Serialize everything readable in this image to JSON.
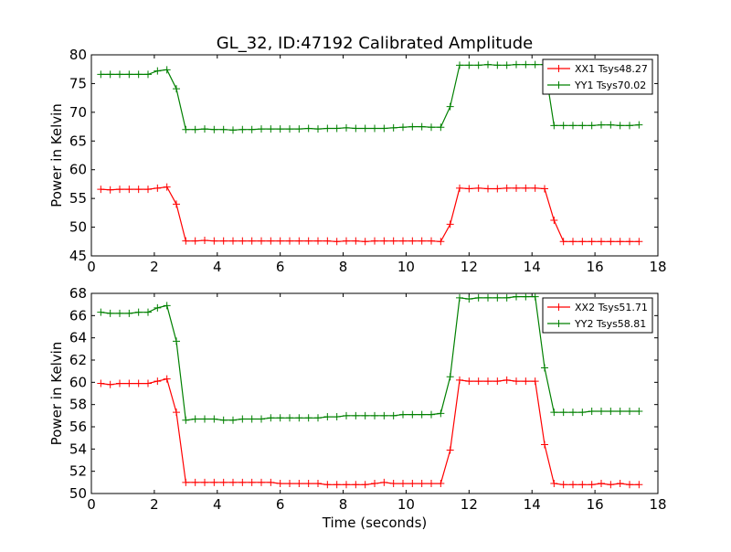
{
  "title": "GL_32, ID:47192 Calibrated Amplitude",
  "colors": {
    "xx": "#ff0000",
    "yy": "#008000"
  },
  "chart_data": [
    {
      "type": "line",
      "ylabel": "Power in Kelvin",
      "xlabel": "",
      "xlim": [
        0,
        18
      ],
      "ylim": [
        45,
        80
      ],
      "xticks": [
        0,
        2,
        4,
        6,
        8,
        10,
        12,
        14,
        16,
        18
      ],
      "yticks": [
        45,
        50,
        55,
        60,
        65,
        70,
        75,
        80
      ],
      "grid": false,
      "legend_position": "top-right",
      "x": [
        0.3,
        0.6,
        0.9,
        1.2,
        1.5,
        1.8,
        2.1,
        2.4,
        2.7,
        3.0,
        3.3,
        3.6,
        3.9,
        4.2,
        4.5,
        4.8,
        5.1,
        5.4,
        5.7,
        6.0,
        6.3,
        6.6,
        6.9,
        7.2,
        7.5,
        7.8,
        8.1,
        8.4,
        8.7,
        9.0,
        9.3,
        9.6,
        9.9,
        10.2,
        10.5,
        10.8,
        11.1,
        11.4,
        11.7,
        12.0,
        12.3,
        12.6,
        12.9,
        13.2,
        13.5,
        13.8,
        14.1,
        14.4,
        14.7,
        15.0,
        15.3,
        15.6,
        15.9,
        16.2,
        16.5,
        16.8,
        17.1,
        17.4
      ],
      "series": [
        {
          "name": "XX1 Tsys48.27",
          "color_key": "xx",
          "values": [
            56.6,
            56.5,
            56.6,
            56.6,
            56.6,
            56.6,
            56.8,
            57.0,
            54.0,
            47.6,
            47.6,
            47.7,
            47.6,
            47.6,
            47.6,
            47.6,
            47.6,
            47.6,
            47.6,
            47.6,
            47.6,
            47.6,
            47.6,
            47.6,
            47.6,
            47.5,
            47.6,
            47.6,
            47.5,
            47.6,
            47.6,
            47.6,
            47.6,
            47.6,
            47.6,
            47.6,
            47.5,
            50.5,
            56.8,
            56.7,
            56.8,
            56.7,
            56.7,
            56.8,
            56.8,
            56.8,
            56.8,
            56.7,
            51.2,
            47.5,
            47.5,
            47.5,
            47.5,
            47.5,
            47.5,
            47.5,
            47.5,
            47.5
          ]
        },
        {
          "name": "YY1 Tsys70.02",
          "color_key": "yy",
          "values": [
            76.6,
            76.6,
            76.6,
            76.6,
            76.6,
            76.6,
            77.2,
            77.4,
            74.1,
            67.0,
            67.0,
            67.1,
            67.0,
            67.0,
            66.9,
            67.0,
            67.0,
            67.1,
            67.1,
            67.1,
            67.1,
            67.1,
            67.2,
            67.1,
            67.2,
            67.2,
            67.3,
            67.2,
            67.2,
            67.2,
            67.2,
            67.3,
            67.4,
            67.5,
            67.5,
            67.4,
            67.4,
            71.0,
            78.2,
            78.2,
            78.2,
            78.3,
            78.2,
            78.2,
            78.3,
            78.3,
            78.3,
            78.3,
            67.7,
            67.7,
            67.7,
            67.7,
            67.7,
            67.8,
            67.8,
            67.7,
            67.7,
            67.8
          ]
        }
      ]
    },
    {
      "type": "line",
      "ylabel": "Power in Kelvin",
      "xlabel": "Time (seconds)",
      "xlim": [
        0,
        18
      ],
      "ylim": [
        50,
        68
      ],
      "xticks": [
        0,
        2,
        4,
        6,
        8,
        10,
        12,
        14,
        16,
        18
      ],
      "yticks": [
        50,
        52,
        54,
        56,
        58,
        60,
        62,
        64,
        66,
        68
      ],
      "grid": false,
      "legend_position": "top-right",
      "x": [
        0.3,
        0.6,
        0.9,
        1.2,
        1.5,
        1.8,
        2.1,
        2.4,
        2.7,
        3.0,
        3.3,
        3.6,
        3.9,
        4.2,
        4.5,
        4.8,
        5.1,
        5.4,
        5.7,
        6.0,
        6.3,
        6.6,
        6.9,
        7.2,
        7.5,
        7.8,
        8.1,
        8.4,
        8.7,
        9.0,
        9.3,
        9.6,
        9.9,
        10.2,
        10.5,
        10.8,
        11.1,
        11.4,
        11.7,
        12.0,
        12.3,
        12.6,
        12.9,
        13.2,
        13.5,
        13.8,
        14.1,
        14.4,
        14.7,
        15.0,
        15.3,
        15.6,
        15.9,
        16.2,
        16.5,
        16.8,
        17.1,
        17.4
      ],
      "series": [
        {
          "name": "XX2 Tsys51.71",
          "color_key": "xx",
          "values": [
            59.9,
            59.8,
            59.9,
            59.9,
            59.9,
            59.9,
            60.1,
            60.3,
            57.3,
            51.0,
            51.0,
            51.0,
            51.0,
            51.0,
            51.0,
            51.0,
            51.0,
            51.0,
            51.0,
            50.9,
            50.9,
            50.9,
            50.9,
            50.9,
            50.8,
            50.8,
            50.8,
            50.8,
            50.8,
            50.9,
            51.0,
            50.9,
            50.9,
            50.9,
            50.9,
            50.9,
            50.9,
            53.9,
            60.2,
            60.1,
            60.1,
            60.1,
            60.1,
            60.2,
            60.1,
            60.1,
            60.1,
            54.4,
            50.9,
            50.8,
            50.8,
            50.8,
            50.8,
            50.9,
            50.8,
            50.9,
            50.8,
            50.8
          ]
        },
        {
          "name": "YY2 Tsys58.81",
          "color_key": "yy",
          "values": [
            66.3,
            66.2,
            66.2,
            66.2,
            66.3,
            66.3,
            66.7,
            66.9,
            63.7,
            56.6,
            56.7,
            56.7,
            56.7,
            56.6,
            56.6,
            56.7,
            56.7,
            56.7,
            56.8,
            56.8,
            56.8,
            56.8,
            56.8,
            56.8,
            56.9,
            56.9,
            57.0,
            57.0,
            57.0,
            57.0,
            57.0,
            57.0,
            57.1,
            57.1,
            57.1,
            57.1,
            57.2,
            60.5,
            67.6,
            67.5,
            67.6,
            67.6,
            67.6,
            67.6,
            67.7,
            67.7,
            67.7,
            61.3,
            57.3,
            57.3,
            57.3,
            57.3,
            57.4,
            57.4,
            57.4,
            57.4,
            57.4,
            57.4
          ]
        }
      ]
    }
  ]
}
